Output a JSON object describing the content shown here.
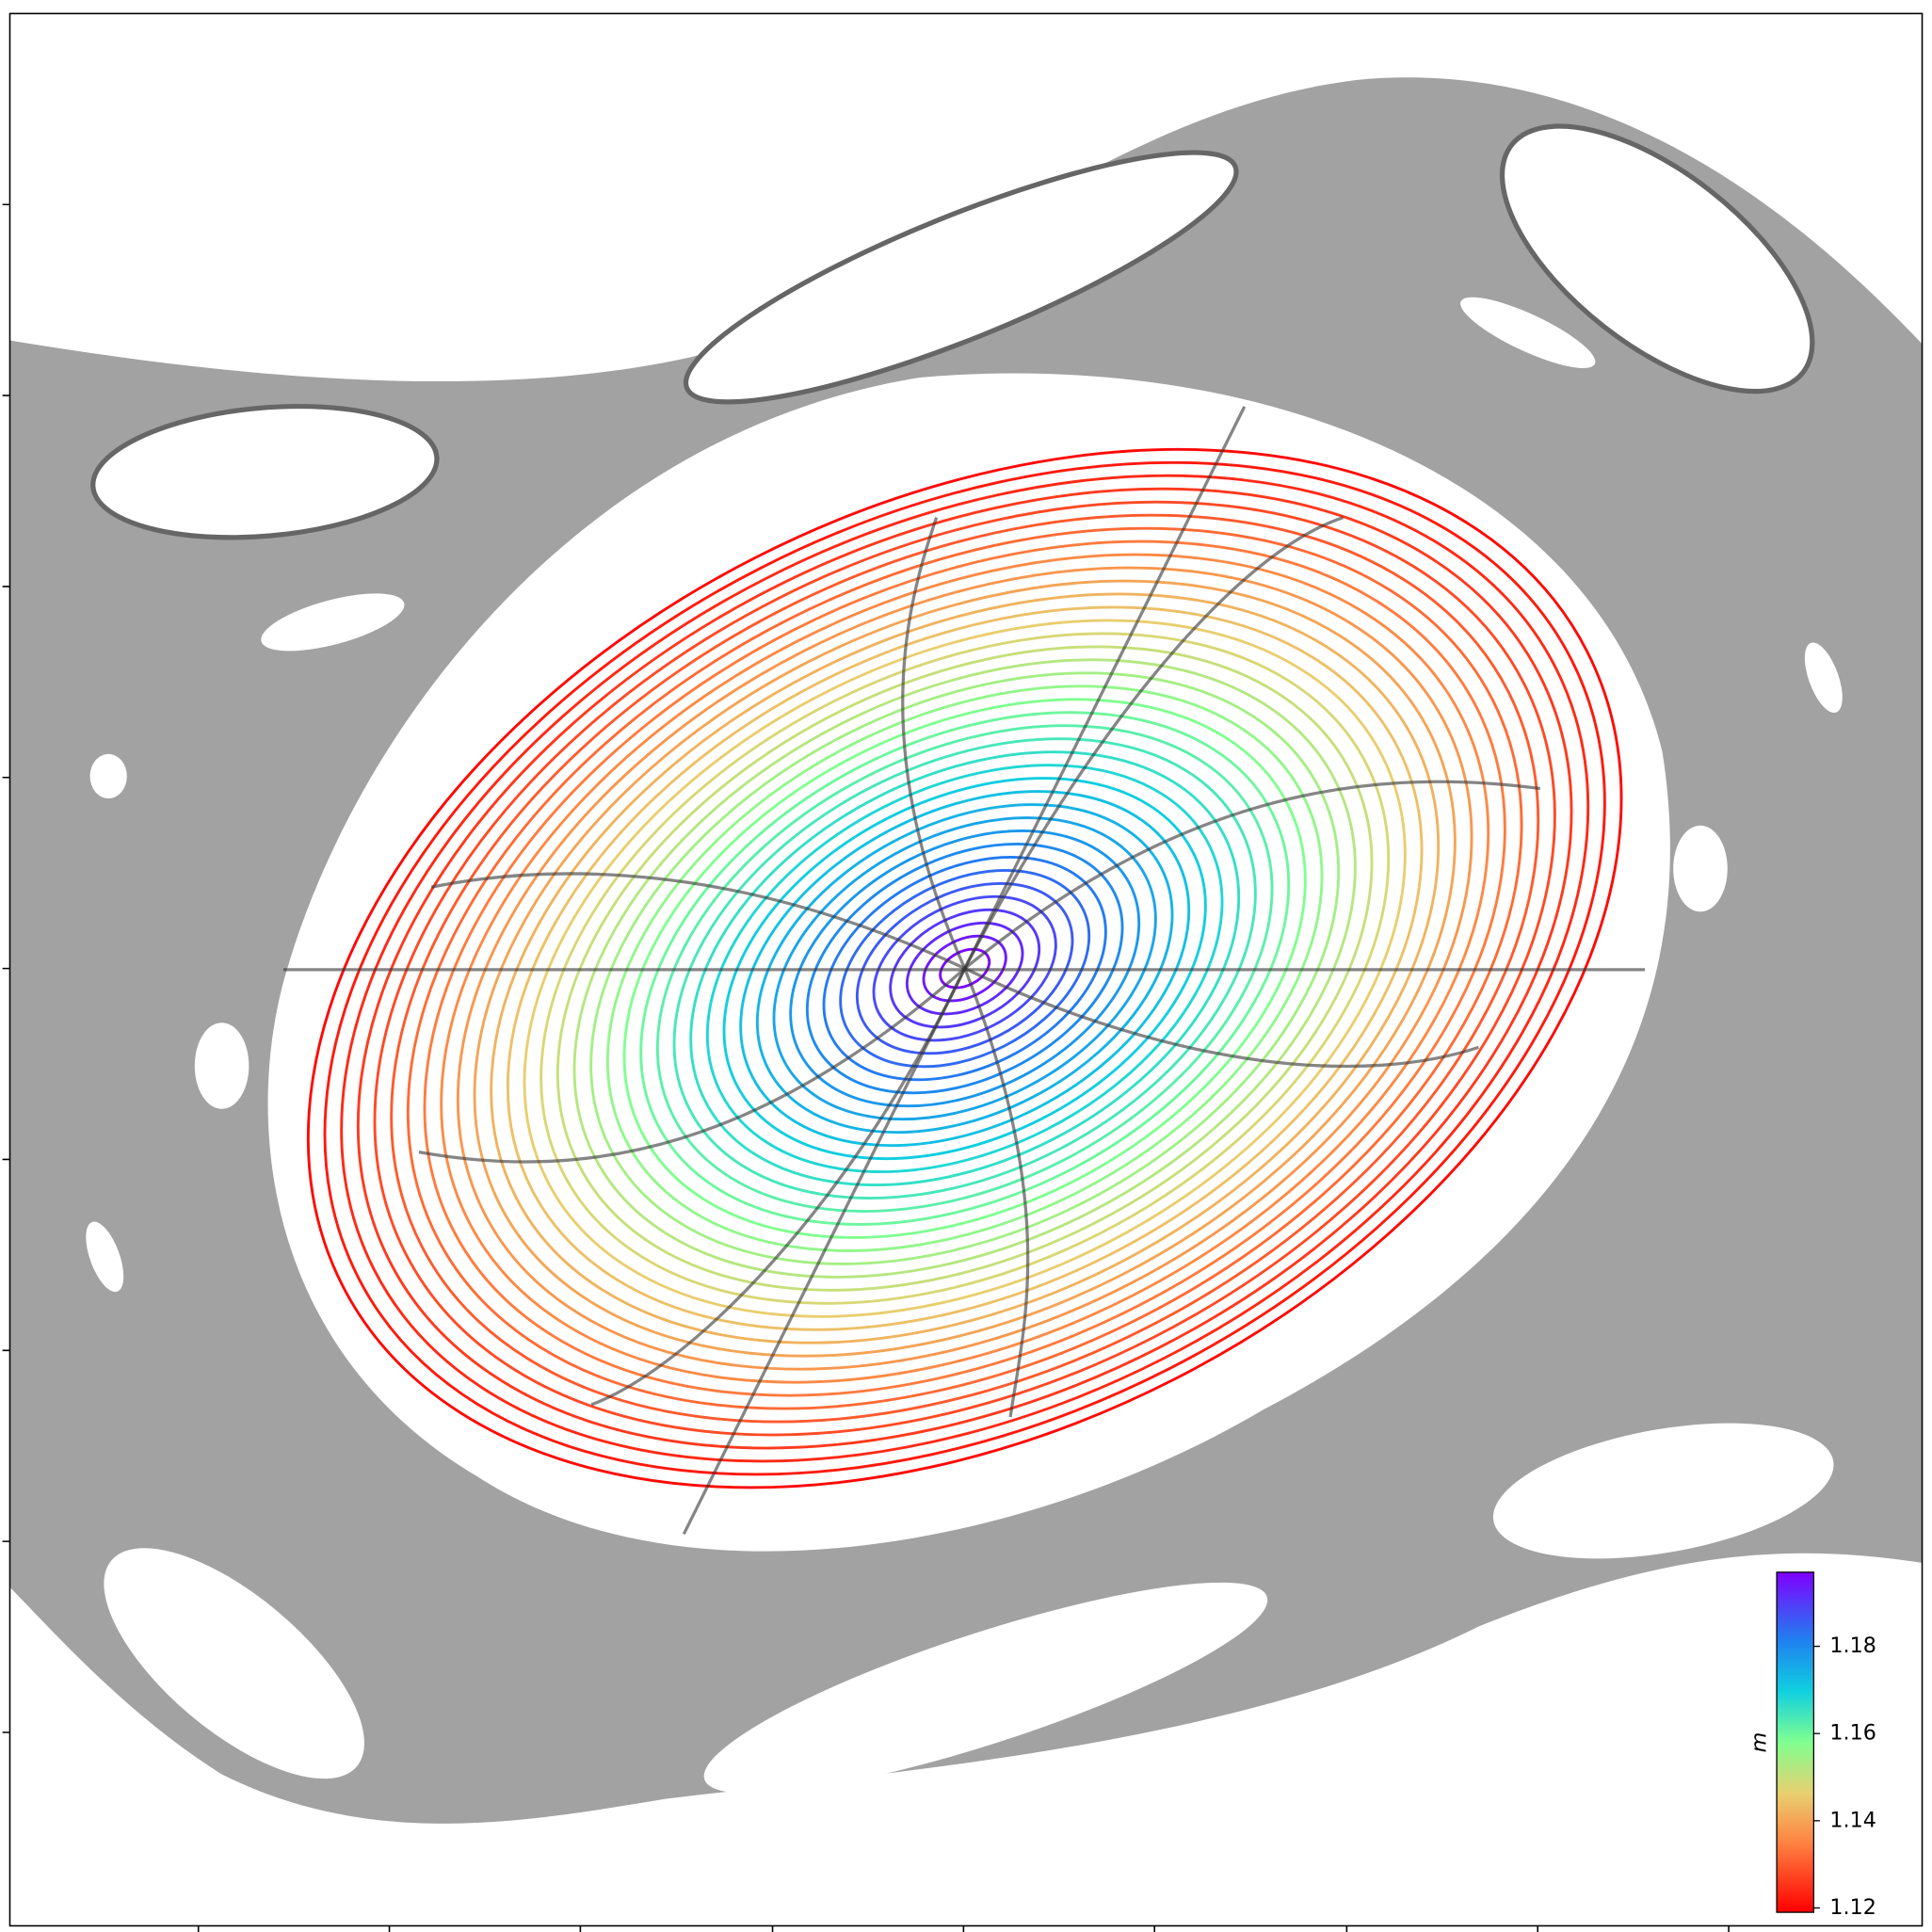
{
  "chart_data": {
    "type": "contour",
    "cmap": "rainbow",
    "levels": [
      1.12,
      1.122,
      1.124,
      1.126,
      1.128,
      1.13,
      1.132,
      1.134,
      1.136,
      1.138,
      1.14,
      1.142,
      1.144,
      1.146,
      1.148,
      1.15,
      1.152,
      1.154,
      1.156,
      1.158,
      1.16,
      1.162,
      1.164,
      1.166,
      1.168,
      1.17,
      1.172,
      1.174,
      1.176,
      1.178,
      1.18,
      1.182,
      1.184,
      1.186,
      1.188,
      1.19,
      1.192,
      1.194,
      1.196
    ],
    "colorbar": {
      "label": "m",
      "clim": [
        1.119,
        1.197
      ],
      "ticks": [
        1.12,
        1.14,
        1.16,
        1.18
      ]
    }
  }
}
